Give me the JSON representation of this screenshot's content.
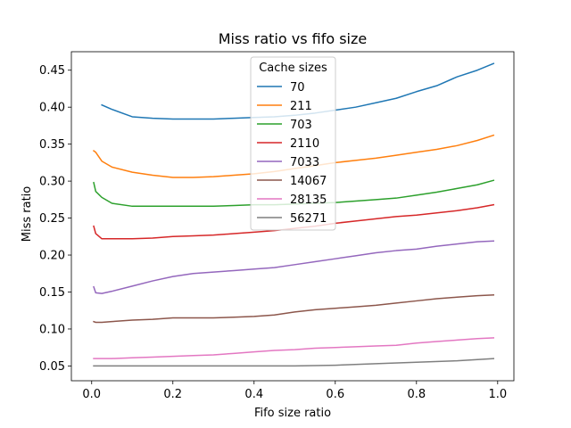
{
  "chart_data": {
    "type": "line",
    "title": "Miss ratio vs fifo size",
    "xlabel": "Fifo size ratio",
    "ylabel": "Miss ratio",
    "xlim": [
      -0.05,
      1.04
    ],
    "ylim": [
      0.03,
      0.475
    ],
    "xticks": [
      0.0,
      0.2,
      0.4,
      0.6,
      0.8,
      1.0
    ],
    "xtick_labels": [
      "0.0",
      "0.2",
      "0.4",
      "0.6",
      "0.8",
      "1.0"
    ],
    "yticks": [
      0.05,
      0.1,
      0.15,
      0.2,
      0.25,
      0.3,
      0.35,
      0.4,
      0.45
    ],
    "ytick_labels": [
      "0.05",
      "0.10",
      "0.15",
      "0.20",
      "0.25",
      "0.30",
      "0.35",
      "0.40",
      "0.45"
    ],
    "grid": false,
    "legend_title": "Cache sizes",
    "legend_position": "top-center",
    "series": [
      {
        "name": "70",
        "color": "#1f77b4",
        "x": [
          0.025,
          0.05,
          0.1,
          0.15,
          0.2,
          0.25,
          0.3,
          0.35,
          0.4,
          0.45,
          0.5,
          0.55,
          0.6,
          0.65,
          0.7,
          0.75,
          0.8,
          0.85,
          0.9,
          0.95,
          0.99
        ],
        "y": [
          0.403,
          0.397,
          0.387,
          0.385,
          0.384,
          0.384,
          0.384,
          0.385,
          0.386,
          0.387,
          0.389,
          0.392,
          0.396,
          0.4,
          0.406,
          0.412,
          0.421,
          0.429,
          0.441,
          0.45,
          0.459
        ]
      },
      {
        "name": "211",
        "color": "#ff7f0e",
        "x": [
          0.005,
          0.01,
          0.025,
          0.05,
          0.1,
          0.15,
          0.2,
          0.25,
          0.3,
          0.35,
          0.4,
          0.45,
          0.5,
          0.55,
          0.6,
          0.65,
          0.7,
          0.75,
          0.8,
          0.85,
          0.9,
          0.95,
          0.99
        ],
        "y": [
          0.341,
          0.339,
          0.327,
          0.319,
          0.312,
          0.308,
          0.305,
          0.305,
          0.306,
          0.308,
          0.31,
          0.313,
          0.317,
          0.321,
          0.325,
          0.328,
          0.331,
          0.335,
          0.339,
          0.343,
          0.348,
          0.355,
          0.362
        ]
      },
      {
        "name": "703",
        "color": "#2ca02c",
        "x": [
          0.005,
          0.01,
          0.025,
          0.05,
          0.1,
          0.15,
          0.2,
          0.25,
          0.3,
          0.35,
          0.4,
          0.45,
          0.5,
          0.55,
          0.6,
          0.65,
          0.7,
          0.75,
          0.8,
          0.85,
          0.9,
          0.95,
          0.99
        ],
        "y": [
          0.298,
          0.286,
          0.278,
          0.27,
          0.266,
          0.266,
          0.266,
          0.266,
          0.266,
          0.267,
          0.268,
          0.268,
          0.269,
          0.27,
          0.271,
          0.273,
          0.275,
          0.277,
          0.281,
          0.285,
          0.29,
          0.295,
          0.301
        ]
      },
      {
        "name": "2110",
        "color": "#d62728",
        "x": [
          0.005,
          0.01,
          0.025,
          0.05,
          0.1,
          0.15,
          0.2,
          0.25,
          0.3,
          0.35,
          0.4,
          0.45,
          0.5,
          0.55,
          0.6,
          0.65,
          0.7,
          0.75,
          0.8,
          0.85,
          0.9,
          0.95,
          0.99
        ],
        "y": [
          0.239,
          0.229,
          0.222,
          0.222,
          0.222,
          0.223,
          0.225,
          0.226,
          0.227,
          0.229,
          0.231,
          0.233,
          0.236,
          0.239,
          0.243,
          0.246,
          0.249,
          0.252,
          0.254,
          0.257,
          0.26,
          0.264,
          0.268
        ]
      },
      {
        "name": "7033",
        "color": "#9467bd",
        "x": [
          0.005,
          0.01,
          0.025,
          0.05,
          0.1,
          0.15,
          0.2,
          0.25,
          0.3,
          0.35,
          0.4,
          0.45,
          0.5,
          0.55,
          0.6,
          0.65,
          0.7,
          0.75,
          0.8,
          0.85,
          0.9,
          0.95,
          0.99
        ],
        "y": [
          0.157,
          0.149,
          0.148,
          0.151,
          0.158,
          0.165,
          0.171,
          0.175,
          0.177,
          0.179,
          0.181,
          0.183,
          0.187,
          0.191,
          0.195,
          0.199,
          0.203,
          0.206,
          0.208,
          0.212,
          0.215,
          0.218,
          0.219
        ]
      },
      {
        "name": "14067",
        "color": "#8c564b",
        "x": [
          0.005,
          0.01,
          0.025,
          0.05,
          0.1,
          0.15,
          0.2,
          0.25,
          0.3,
          0.35,
          0.4,
          0.45,
          0.5,
          0.55,
          0.6,
          0.65,
          0.7,
          0.75,
          0.8,
          0.85,
          0.9,
          0.95,
          0.99
        ],
        "y": [
          0.11,
          0.109,
          0.109,
          0.11,
          0.112,
          0.113,
          0.115,
          0.115,
          0.115,
          0.116,
          0.117,
          0.119,
          0.123,
          0.126,
          0.128,
          0.13,
          0.132,
          0.135,
          0.138,
          0.141,
          0.143,
          0.145,
          0.146
        ]
      },
      {
        "name": "28135",
        "color": "#e377c2",
        "x": [
          0.005,
          0.01,
          0.025,
          0.05,
          0.1,
          0.15,
          0.2,
          0.25,
          0.3,
          0.35,
          0.4,
          0.45,
          0.5,
          0.55,
          0.6,
          0.65,
          0.7,
          0.75,
          0.8,
          0.85,
          0.9,
          0.95,
          0.99
        ],
        "y": [
          0.06,
          0.06,
          0.06,
          0.06,
          0.061,
          0.062,
          0.063,
          0.064,
          0.065,
          0.067,
          0.069,
          0.071,
          0.072,
          0.074,
          0.075,
          0.076,
          0.077,
          0.078,
          0.081,
          0.083,
          0.085,
          0.087,
          0.088
        ]
      },
      {
        "name": "56271",
        "color": "#7f7f7f",
        "x": [
          0.005,
          0.05,
          0.1,
          0.2,
          0.3,
          0.4,
          0.5,
          0.6,
          0.7,
          0.8,
          0.9,
          0.99
        ],
        "y": [
          0.05,
          0.05,
          0.05,
          0.05,
          0.05,
          0.05,
          0.05,
          0.051,
          0.053,
          0.055,
          0.057,
          0.06
        ]
      }
    ]
  }
}
